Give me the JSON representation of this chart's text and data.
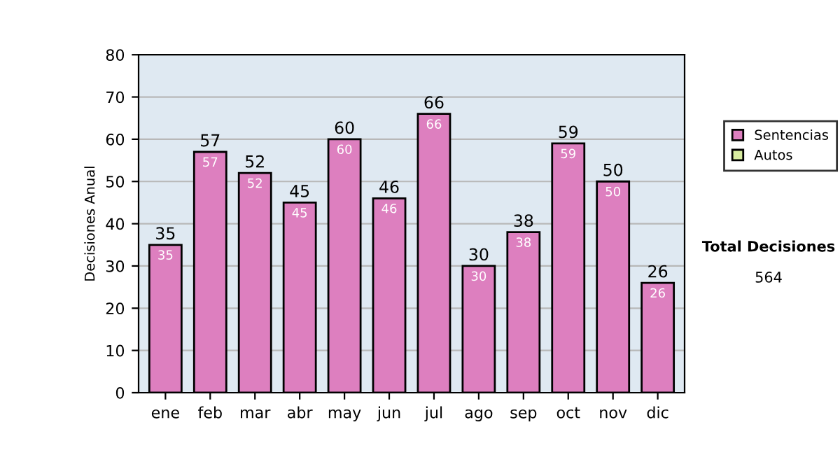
{
  "chart_data": {
    "type": "bar",
    "ylabel": "Decisiones Anual",
    "categories": [
      "ene",
      "feb",
      "mar",
      "abr",
      "may",
      "jun",
      "jul",
      "ago",
      "sep",
      "oct",
      "nov",
      "dic"
    ],
    "series": [
      {
        "name": "Sentencias",
        "color": "#dd7fbf",
        "values": [
          35,
          57,
          52,
          45,
          60,
          46,
          66,
          30,
          38,
          59,
          50,
          26
        ]
      },
      {
        "name": "Autos",
        "color": "#d8eca0",
        "values": [
          null,
          null,
          null,
          null,
          null,
          null,
          null,
          null,
          null,
          null,
          null,
          null
        ]
      }
    ],
    "stacked": true,
    "totals": [
      "35",
      "57",
      "52",
      "45",
      "60",
      "46",
      "66",
      "30",
      "38",
      "59",
      "50",
      "26"
    ],
    "data_labels": true,
    "ylim": [
      0,
      80
    ],
    "yticks": [
      0,
      10,
      20,
      30,
      40,
      50,
      60,
      70,
      80
    ],
    "grid": "y",
    "legend": "right",
    "annotations": [
      "Total Decisiones",
      "564"
    ]
  }
}
